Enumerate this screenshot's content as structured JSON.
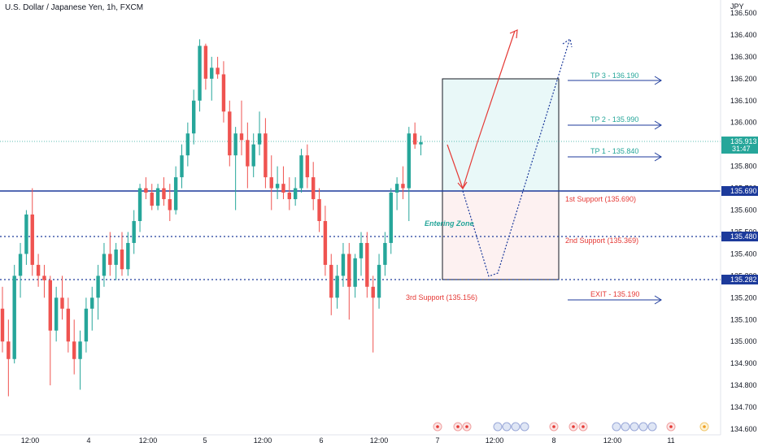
{
  "chart_data": {
    "type": "candlestick",
    "title": "U.S. Dollar / Japanese Yen, 1h, FXCM",
    "currency": "JPY",
    "ylim": [
      134.6,
      136.5
    ],
    "y_ticks": [
      134.6,
      134.7,
      134.8,
      134.9,
      135.0,
      135.1,
      135.2,
      135.3,
      135.4,
      135.5,
      135.6,
      135.7,
      135.8,
      135.9,
      136.0,
      136.1,
      136.2,
      136.3,
      136.4,
      136.5
    ],
    "x_labels": [
      "12:00",
      "4",
      "12:00",
      "5",
      "12:00",
      "6",
      "12:00",
      "7",
      "12:00",
      "8",
      "12:00",
      "11"
    ],
    "last_price": "135.913",
    "countdown": "31:47",
    "price_levels": [
      {
        "value": 135.69,
        "label": "135.690",
        "style": "solid"
      },
      {
        "value": 135.48,
        "label": "135.480",
        "style": "dotted"
      },
      {
        "value": 135.282,
        "label": "135.282",
        "style": "dotted"
      }
    ],
    "annotations": {
      "tp3": "TP 3 - 136.190",
      "tp2": "TP 2 - 135.990",
      "tp1": "TP 1 - 135.840",
      "support1": "1st Support (135.690)",
      "support2": "2nd Support (135.369)",
      "support3": "3rd Support (135.156)",
      "exit": "EXIT - 135.190",
      "entering_zone": "Entering Zone"
    },
    "candles": [
      {
        "o": 135.15,
        "h": 135.25,
        "l": 134.95,
        "c": 135.0
      },
      {
        "o": 135.0,
        "h": 135.1,
        "l": 134.75,
        "c": 134.92
      },
      {
        "o": 134.92,
        "h": 135.35,
        "l": 134.9,
        "c": 135.3
      },
      {
        "o": 135.3,
        "h": 135.45,
        "l": 135.2,
        "c": 135.4
      },
      {
        "o": 135.4,
        "h": 135.6,
        "l": 135.35,
        "c": 135.58
      },
      {
        "o": 135.58,
        "h": 135.7,
        "l": 135.3,
        "c": 135.35
      },
      {
        "o": 135.35,
        "h": 135.4,
        "l": 135.25,
        "c": 135.3
      },
      {
        "o": 135.3,
        "h": 135.35,
        "l": 135.2,
        "c": 135.28
      },
      {
        "o": 135.28,
        "h": 135.3,
        "l": 134.8,
        "c": 135.05
      },
      {
        "o": 135.05,
        "h": 135.25,
        "l": 135.0,
        "c": 135.2
      },
      {
        "o": 135.2,
        "h": 135.3,
        "l": 135.1,
        "c": 135.15
      },
      {
        "o": 135.15,
        "h": 135.2,
        "l": 134.95,
        "c": 135.0
      },
      {
        "o": 135.0,
        "h": 135.1,
        "l": 134.85,
        "c": 134.92
      },
      {
        "o": 134.92,
        "h": 135.05,
        "l": 134.78,
        "c": 135.0
      },
      {
        "o": 135.0,
        "h": 135.2,
        "l": 134.95,
        "c": 135.15
      },
      {
        "o": 135.15,
        "h": 135.25,
        "l": 135.05,
        "c": 135.2
      },
      {
        "o": 135.2,
        "h": 135.35,
        "l": 135.1,
        "c": 135.3
      },
      {
        "o": 135.3,
        "h": 135.45,
        "l": 135.25,
        "c": 135.4
      },
      {
        "o": 135.4,
        "h": 135.5,
        "l": 135.3,
        "c": 135.35
      },
      {
        "o": 135.35,
        "h": 135.45,
        "l": 135.28,
        "c": 135.42
      },
      {
        "o": 135.42,
        "h": 135.5,
        "l": 135.3,
        "c": 135.33
      },
      {
        "o": 135.33,
        "h": 135.5,
        "l": 135.3,
        "c": 135.45
      },
      {
        "o": 135.45,
        "h": 135.6,
        "l": 135.4,
        "c": 135.55
      },
      {
        "o": 135.55,
        "h": 135.72,
        "l": 135.5,
        "c": 135.7
      },
      {
        "o": 135.7,
        "h": 135.75,
        "l": 135.65,
        "c": 135.68
      },
      {
        "o": 135.68,
        "h": 135.72,
        "l": 135.6,
        "c": 135.62
      },
      {
        "o": 135.62,
        "h": 135.72,
        "l": 135.6,
        "c": 135.7
      },
      {
        "o": 135.7,
        "h": 135.75,
        "l": 135.62,
        "c": 135.65
      },
      {
        "o": 135.65,
        "h": 135.72,
        "l": 135.55,
        "c": 135.6
      },
      {
        "o": 135.6,
        "h": 135.8,
        "l": 135.58,
        "c": 135.75
      },
      {
        "o": 135.75,
        "h": 135.9,
        "l": 135.7,
        "c": 135.85
      },
      {
        "o": 135.85,
        "h": 136.0,
        "l": 135.8,
        "c": 135.95
      },
      {
        "o": 135.95,
        "h": 136.15,
        "l": 135.9,
        "c": 136.1
      },
      {
        "o": 136.1,
        "h": 136.38,
        "l": 136.05,
        "c": 136.35
      },
      {
        "o": 136.35,
        "h": 136.36,
        "l": 136.15,
        "c": 136.2
      },
      {
        "o": 136.2,
        "h": 136.3,
        "l": 136.1,
        "c": 136.25
      },
      {
        "o": 136.25,
        "h": 136.3,
        "l": 136.2,
        "c": 136.22
      },
      {
        "o": 136.22,
        "h": 136.28,
        "l": 136.0,
        "c": 136.05
      },
      {
        "o": 136.05,
        "h": 136.1,
        "l": 135.8,
        "c": 135.85
      },
      {
        "o": 135.85,
        "h": 135.98,
        "l": 135.6,
        "c": 135.95
      },
      {
        "o": 135.95,
        "h": 136.1,
        "l": 135.85,
        "c": 135.92
      },
      {
        "o": 135.92,
        "h": 136.0,
        "l": 135.7,
        "c": 135.8
      },
      {
        "o": 135.8,
        "h": 135.95,
        "l": 135.75,
        "c": 135.9
      },
      {
        "o": 135.9,
        "h": 136.05,
        "l": 135.85,
        "c": 135.95
      },
      {
        "o": 135.95,
        "h": 136.02,
        "l": 135.7,
        "c": 135.75
      },
      {
        "o": 135.75,
        "h": 135.85,
        "l": 135.6,
        "c": 135.7
      },
      {
        "o": 135.7,
        "h": 135.8,
        "l": 135.65,
        "c": 135.72
      },
      {
        "o": 135.72,
        "h": 135.8,
        "l": 135.65,
        "c": 135.68
      },
      {
        "o": 135.68,
        "h": 135.75,
        "l": 135.6,
        "c": 135.65
      },
      {
        "o": 135.65,
        "h": 135.75,
        "l": 135.62,
        "c": 135.7
      },
      {
        "o": 135.7,
        "h": 135.88,
        "l": 135.68,
        "c": 135.85
      },
      {
        "o": 135.85,
        "h": 135.9,
        "l": 135.7,
        "c": 135.75
      },
      {
        "o": 135.75,
        "h": 135.82,
        "l": 135.6,
        "c": 135.65
      },
      {
        "o": 135.65,
        "h": 135.7,
        "l": 135.5,
        "c": 135.55
      },
      {
        "o": 135.55,
        "h": 135.62,
        "l": 135.3,
        "c": 135.35
      },
      {
        "o": 135.35,
        "h": 135.4,
        "l": 135.12,
        "c": 135.2
      },
      {
        "o": 135.2,
        "h": 135.35,
        "l": 135.15,
        "c": 135.3
      },
      {
        "o": 135.3,
        "h": 135.45,
        "l": 135.25,
        "c": 135.4
      },
      {
        "o": 135.4,
        "h": 135.45,
        "l": 135.1,
        "c": 135.25
      },
      {
        "o": 135.25,
        "h": 135.4,
        "l": 135.2,
        "c": 135.38
      },
      {
        "o": 135.38,
        "h": 135.5,
        "l": 135.3,
        "c": 135.45
      },
      {
        "o": 135.45,
        "h": 135.5,
        "l": 135.2,
        "c": 135.25
      },
      {
        "o": 135.25,
        "h": 135.3,
        "l": 134.95,
        "c": 135.2
      },
      {
        "o": 135.2,
        "h": 135.4,
        "l": 135.15,
        "c": 135.35
      },
      {
        "o": 135.35,
        "h": 135.5,
        "l": 135.3,
        "c": 135.45
      },
      {
        "o": 135.45,
        "h": 135.7,
        "l": 135.4,
        "c": 135.68
      },
      {
        "o": 135.68,
        "h": 135.75,
        "l": 135.6,
        "c": 135.72
      },
      {
        "o": 135.72,
        "h": 135.8,
        "l": 135.65,
        "c": 135.7
      },
      {
        "o": 135.7,
        "h": 135.98,
        "l": 135.55,
        "c": 135.95
      },
      {
        "o": 135.95,
        "h": 136.0,
        "l": 135.88,
        "c": 135.9
      },
      {
        "o": 135.9,
        "h": 135.94,
        "l": 135.85,
        "c": 135.91
      }
    ]
  }
}
